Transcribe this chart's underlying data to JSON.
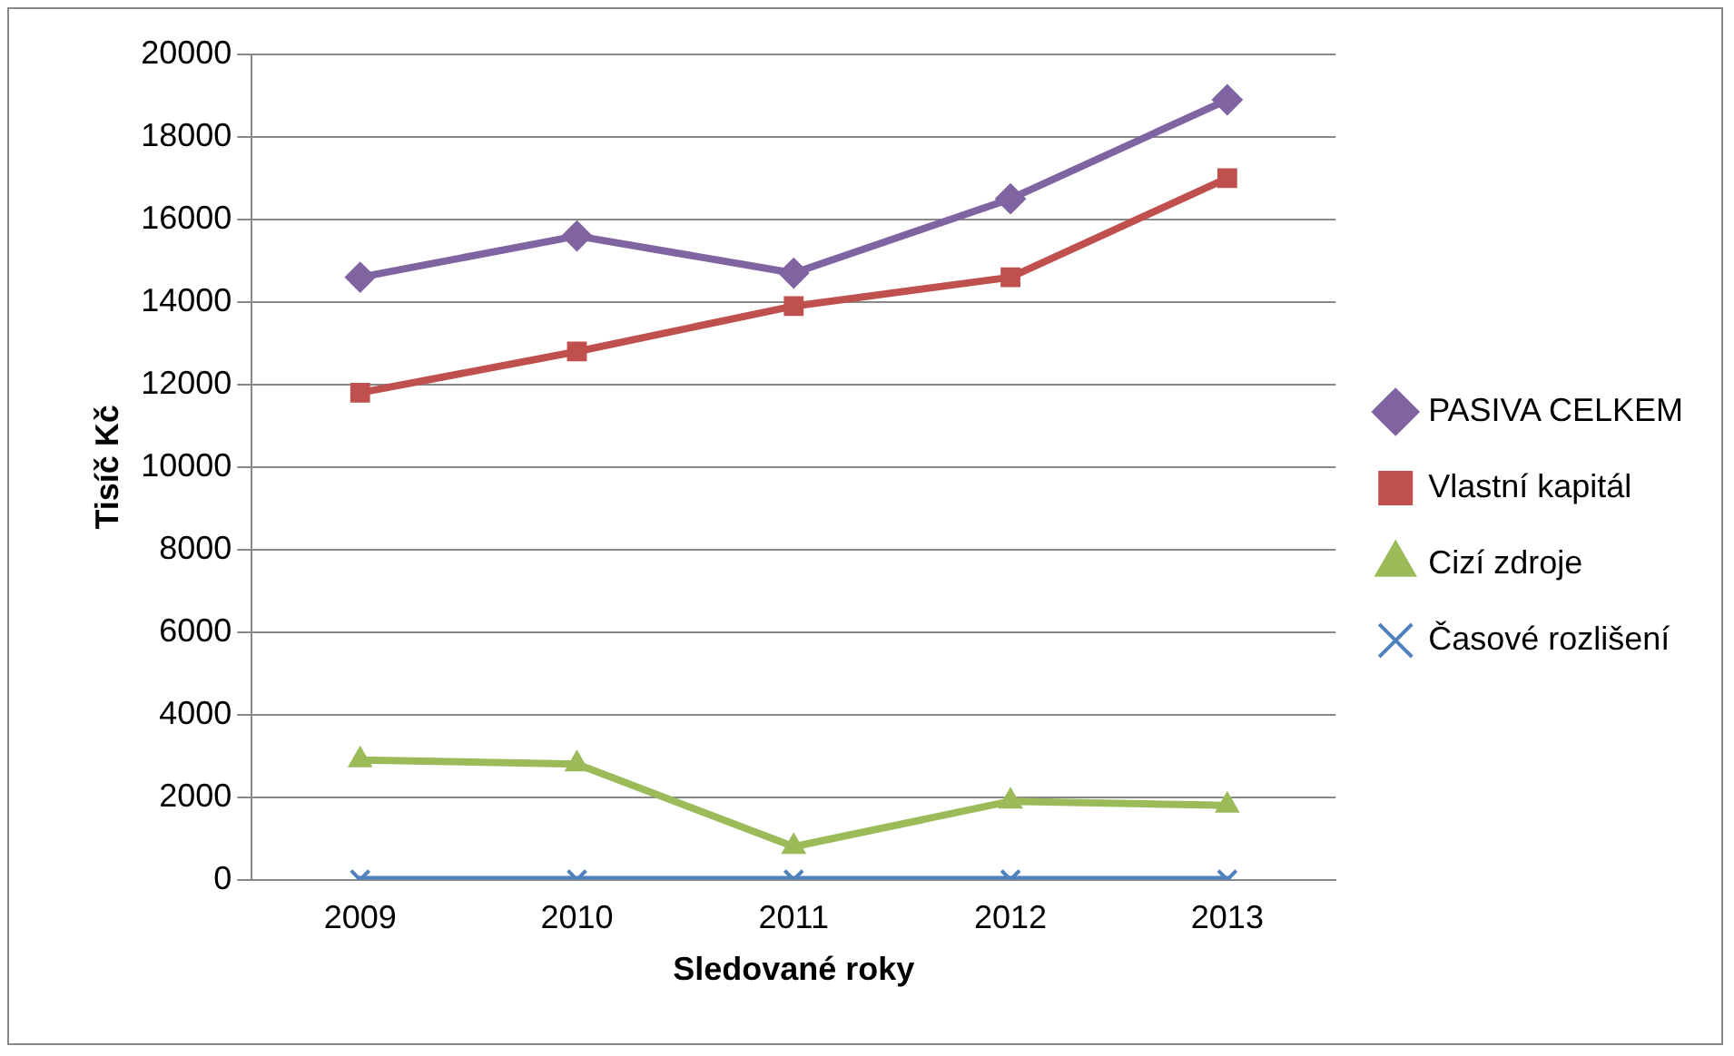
{
  "chart_data": {
    "type": "line",
    "xlabel": "Sledované roky",
    "ylabel": "Tisíč Kč",
    "categories": [
      "2009",
      "2010",
      "2011",
      "2012",
      "2013"
    ],
    "series": [
      {
        "name": "PASIVA CELKEM",
        "color": "#8064a2",
        "marker": "diamond",
        "values": [
          14600,
          15600,
          14700,
          16500,
          18900
        ]
      },
      {
        "name": "Vlastní kapitál",
        "color": "#c0504d",
        "marker": "square",
        "values": [
          11800,
          12800,
          13900,
          14600,
          17000
        ]
      },
      {
        "name": "Cizí zdroje",
        "color": "#9bbb59",
        "marker": "triangle",
        "values": [
          2900,
          2800,
          800,
          1900,
          1800
        ]
      },
      {
        "name": "Časové rozlišení",
        "color": "#4f81bd",
        "marker": "cross",
        "values": [
          0,
          0,
          0,
          0,
          0
        ]
      }
    ],
    "ylim": [
      0,
      20000
    ],
    "yticks": [
      0,
      2000,
      4000,
      6000,
      8000,
      10000,
      12000,
      14000,
      16000,
      18000,
      20000
    ],
    "grid": "y",
    "legend": "right",
    "line_style": "solid"
  }
}
